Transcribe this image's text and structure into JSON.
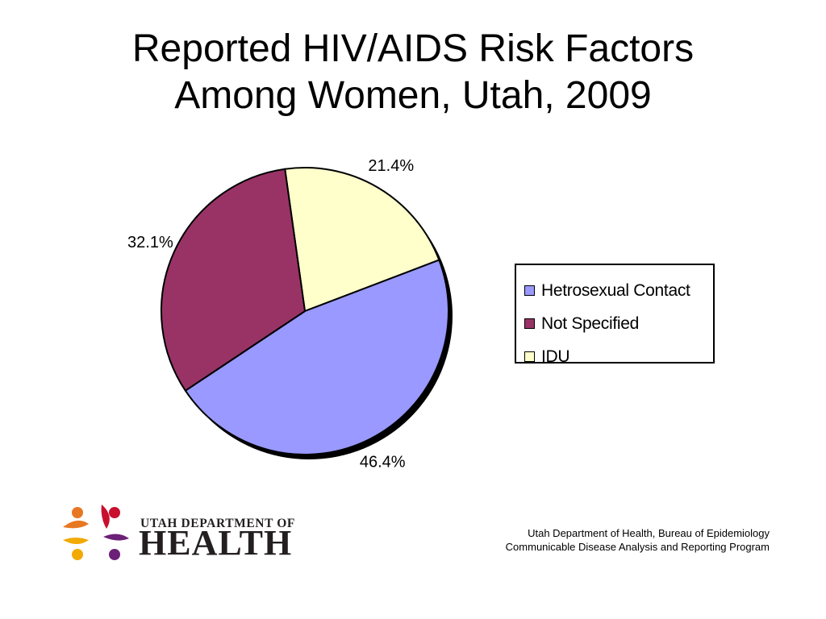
{
  "title_lines": [
    "Reported HIV/AIDS Risk Factors",
    "Among Women, Utah, 2009"
  ],
  "chart_data": {
    "type": "pie",
    "title": "Reported HIV/AIDS Risk Factors Among Women, Utah, 2009",
    "slices": [
      {
        "label": "Hetrosexual Contact",
        "value": 46.4,
        "display": "46.4%",
        "color": "#9999ff"
      },
      {
        "label": "Not Specified",
        "value": 32.1,
        "display": "32.1%",
        "color": "#993366"
      },
      {
        "label": "IDU",
        "value": 21.4,
        "display": "21.4%",
        "color": "#ffffcc"
      }
    ],
    "legend_position": "right"
  },
  "legend": {
    "items": [
      {
        "label": "Hetrosexual Contact",
        "color": "#9999ff"
      },
      {
        "label": "Not Specified",
        "color": "#993366"
      },
      {
        "label": "IDU",
        "color": "#ffffcc"
      }
    ]
  },
  "logo": {
    "line1": "UTAH DEPARTMENT OF",
    "line2": "HEALTH",
    "colors": [
      "#e87722",
      "#c8102e",
      "#f2a900",
      "#6d2077"
    ]
  },
  "credits": {
    "line1": "Utah Department of Health, Bureau of Epidemiology",
    "line2": "Communicable Disease Analysis and Reporting Program"
  }
}
